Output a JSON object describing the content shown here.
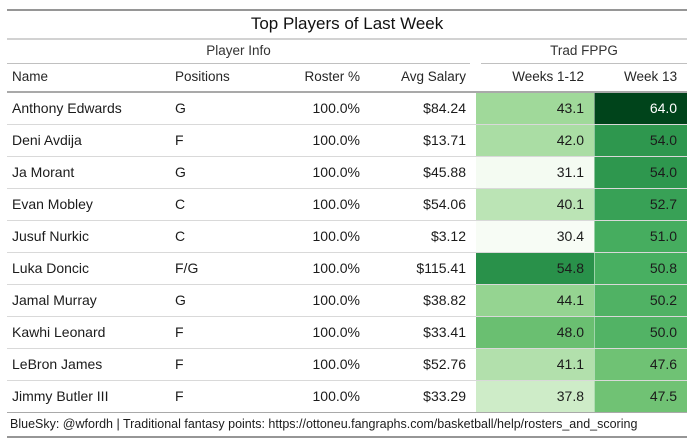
{
  "chart_data": {
    "type": "table",
    "title": "Top Players of Last Week",
    "column_groups": [
      {
        "label": "Player Info",
        "span": 4
      },
      {
        "label": "Trad FPPG",
        "span": 2
      }
    ],
    "columns": [
      "Name",
      "Positions",
      "Roster %",
      "Avg Salary",
      "Weeks 1-12",
      "Week 13"
    ],
    "rows": [
      [
        "Anthony Edwards",
        "G",
        "100.0%",
        "$84.24",
        43.1,
        64.0
      ],
      [
        "Deni Avdija",
        "F",
        "100.0%",
        "$13.71",
        42.0,
        54.0
      ],
      [
        "Ja Morant",
        "G",
        "100.0%",
        "$45.88",
        31.1,
        54.0
      ],
      [
        "Evan Mobley",
        "C",
        "100.0%",
        "$54.06",
        40.1,
        52.7
      ],
      [
        "Jusuf Nurkic",
        "C",
        "100.0%",
        "$3.12",
        30.4,
        51.0
      ],
      [
        "Luka Doncic",
        "F/G",
        "100.0%",
        "$115.41",
        54.8,
        50.8
      ],
      [
        "Jamal Murray",
        "G",
        "100.0%",
        "$38.82",
        44.1,
        50.2
      ],
      [
        "Kawhi Leonard",
        "F",
        "100.0%",
        "$33.41",
        48.0,
        50.0
      ],
      [
        "LeBron James",
        "F",
        "100.0%",
        "$52.76",
        41.1,
        47.6
      ],
      [
        "Jimmy Butler III",
        "F",
        "100.0%",
        "$33.29",
        37.8,
        47.5
      ]
    ],
    "heatmap": {
      "applies_to_columns": [
        "Weeks 1-12",
        "Week 13"
      ],
      "domain": [
        30.4,
        64.0
      ],
      "palette": [
        "#f7fcf5",
        "#e5f5e0",
        "#c7e9c0",
        "#a1d99b",
        "#74c476",
        "#41ab5d",
        "#238b45",
        "#006d2c",
        "#00441b"
      ],
      "light_text_threshold": 0.85,
      "dark_text_color": "#1b1b1b",
      "light_text_color": "#ffffff"
    },
    "source_note": "BlueSky: @wfordh | Traditional fantasy points: https://ottoneu.fangraphs.com/basketball/help/rosters_and_scoring",
    "layout_hints": {
      "value_format": "one_decimal",
      "numeric_alignment": "right",
      "grid": "horizontal-rules"
    }
  }
}
